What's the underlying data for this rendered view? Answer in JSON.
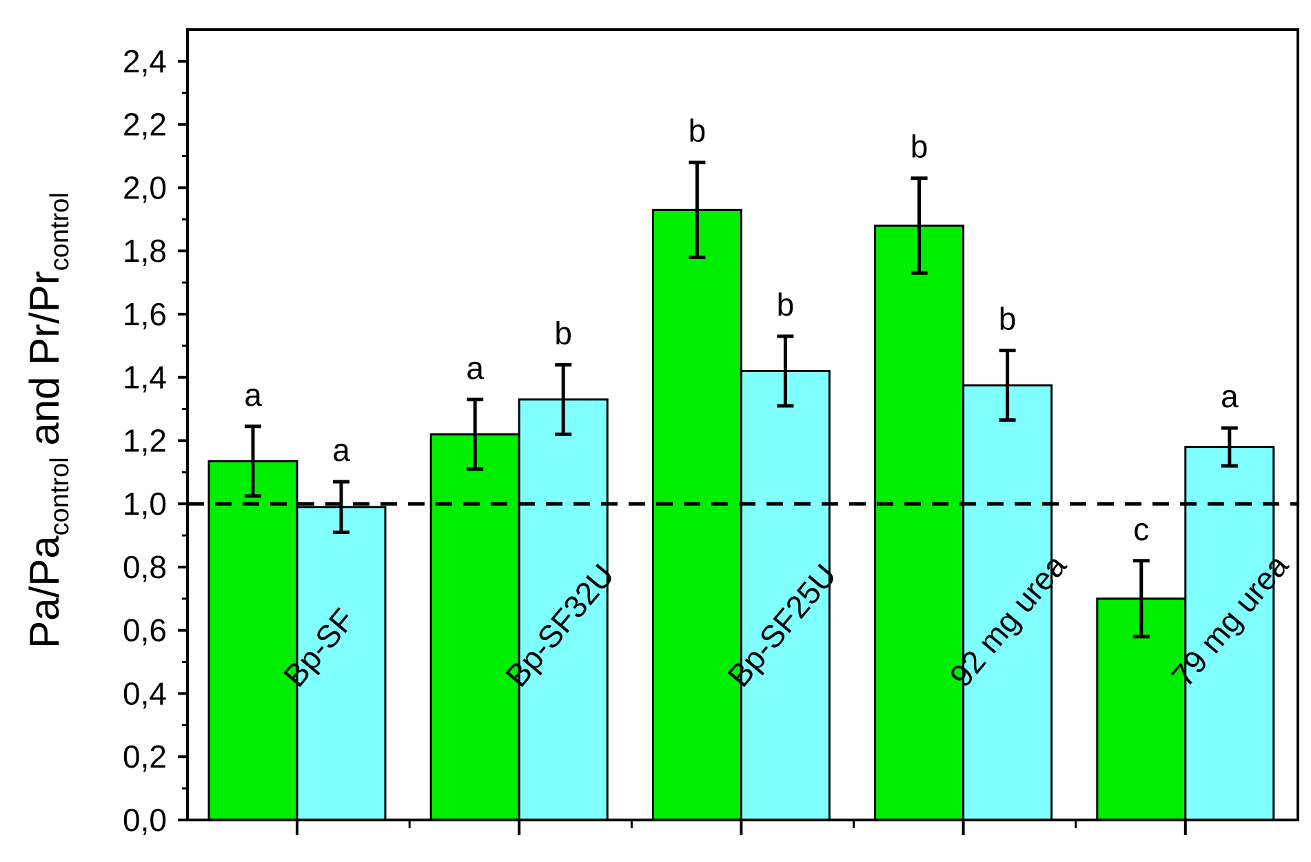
{
  "chart_data": {
    "type": "bar",
    "categories": [
      "Bp-SF",
      "Bp-SF32U",
      "Bp-SF25U",
      "92 mg urea",
      "79 mg urea"
    ],
    "series": [
      {
        "color": "#00ee00",
        "values": [
          1.135,
          1.22,
          1.93,
          1.88,
          0.7
        ],
        "errors": [
          0.11,
          0.11,
          0.15,
          0.15,
          0.12
        ],
        "letters": [
          "a",
          "a",
          "b",
          "b",
          "c"
        ]
      },
      {
        "color": "#80ffff",
        "values": [
          0.99,
          1.33,
          1.42,
          1.375,
          1.18
        ],
        "errors": [
          0.08,
          0.11,
          0.11,
          0.11,
          0.06
        ],
        "letters": [
          "a",
          "b",
          "b",
          "b",
          "a"
        ]
      }
    ],
    "ylabel": {
      "p1": "Pa/Pa",
      "s1": "control",
      "p2": " and Pr/Pr",
      "s2": "control"
    },
    "ylim": [
      0,
      2.5
    ],
    "yticks": [
      "0,0",
      "0,2",
      "0,4",
      "0,6",
      "0,8",
      "1,0",
      "1,2",
      "1,4",
      "1,6",
      "1,8",
      "2,0",
      "2,2",
      "2,4"
    ],
    "reference_line": 1.0,
    "grid": false,
    "legend": "none"
  }
}
